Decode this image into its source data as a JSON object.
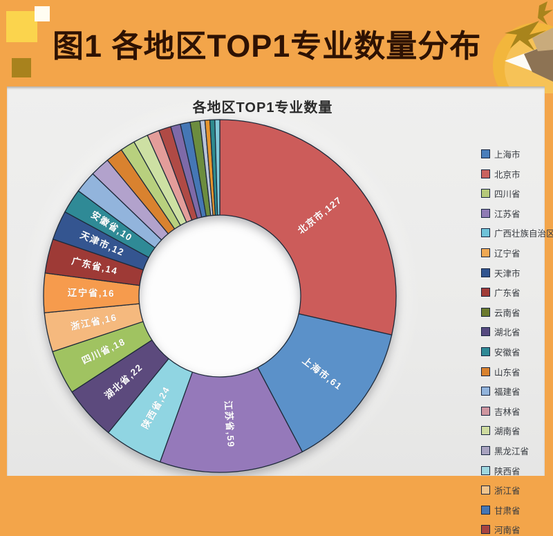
{
  "header": {
    "title": "图1 各地区TOP1专业数量分布"
  },
  "chart": {
    "title": "各地区TOP1专业数量"
  },
  "chart_data": {
    "type": "pie",
    "subtype": "donut",
    "title": "各地区TOP1专业数量",
    "start_angle_deg": 0,
    "direction": "clockwise",
    "legend_position": "right",
    "slices": [
      {
        "name": "北京市",
        "value": 127,
        "label": "北京市,127",
        "color": "#cc5c5a",
        "labeled": true
      },
      {
        "name": "上海市",
        "value": 61,
        "label": "上海市,61",
        "color": "#5b91c9",
        "labeled": true
      },
      {
        "name": "江苏省",
        "value": 59,
        "label": "江苏省,59",
        "color": "#9579ba",
        "labeled": true
      },
      {
        "name": "陕西省",
        "value": 24,
        "label": "陕西省,24",
        "color": "#90d5e2",
        "labeled": true
      },
      {
        "name": "湖北省",
        "value": 22,
        "label": "湖北省,22",
        "color": "#5c4a7d",
        "labeled": true
      },
      {
        "name": "四川省",
        "value": 18,
        "label": "四川省,18",
        "color": "#a0c361",
        "labeled": true
      },
      {
        "name": "浙江省",
        "value": 16,
        "label": "浙江省,16",
        "color": "#f5b97e",
        "labeled": true
      },
      {
        "name": "辽宁省",
        "value": 16,
        "label": "辽宁省,16",
        "color": "#f69b4d",
        "labeled": true
      },
      {
        "name": "广东省",
        "value": 14,
        "label": "广东省,14",
        "color": "#9e3a36",
        "labeled": true
      },
      {
        "name": "天津市",
        "value": 12,
        "label": "天津市,12",
        "color": "#345590",
        "labeled": true
      },
      {
        "name": "安徽省",
        "value": 10,
        "label": "安徽省,10",
        "color": "#2f8a96",
        "labeled": true
      },
      {
        "name": "福建省",
        "value": 9,
        "label": "",
        "color": "#92b4dc",
        "labeled": false,
        "estimated": true
      },
      {
        "name": "黑龙江省",
        "value": 8,
        "label": "",
        "color": "#b2a2cc",
        "labeled": false,
        "estimated": true
      },
      {
        "name": "山东省",
        "value": 7,
        "label": "",
        "color": "#d9822f",
        "labeled": false,
        "estimated": true
      },
      {
        "name": "湖南省",
        "value": 6,
        "label": "",
        "color": "#b8d07e",
        "labeled": false,
        "estimated": true
      },
      {
        "name": "",
        "value": 6,
        "label": "",
        "color": "#cde0a3",
        "labeled": false,
        "estimated": true
      },
      {
        "name": "吉林省",
        "value": 5,
        "label": "",
        "color": "#e39d9a",
        "labeled": false,
        "estimated": true
      },
      {
        "name": "河南省",
        "value": 5,
        "label": "",
        "color": "#b04a45",
        "labeled": false,
        "estimated": true
      },
      {
        "name": "",
        "value": 4,
        "label": "",
        "color": "#7e6aa8",
        "labeled": false,
        "estimated": true
      },
      {
        "name": "甘肃省",
        "value": 4,
        "label": "",
        "color": "#4577b5",
        "labeled": false,
        "estimated": true
      },
      {
        "name": "云南省",
        "value": 4,
        "label": "",
        "color": "#6c8d3f",
        "labeled": false,
        "estimated": true
      },
      {
        "name": "",
        "value": 2,
        "label": "",
        "color": "#b8c4d9",
        "labeled": false,
        "estimated": true
      },
      {
        "name": "",
        "value": 2,
        "label": "",
        "color": "#e6952e",
        "labeled": false,
        "estimated": true
      },
      {
        "name": "",
        "value": 2,
        "label": "",
        "color": "#2e8b8f",
        "labeled": false,
        "estimated": true
      },
      {
        "name": "广西壮族自治区",
        "value": 2,
        "label": "",
        "color": "#7fc9d8",
        "labeled": false,
        "estimated": true
      }
    ],
    "legend": [
      {
        "label": "上海市",
        "color": "#4a7ebb"
      },
      {
        "label": "北京市",
        "color": "#c9625e"
      },
      {
        "label": "四川省",
        "color": "#b5c97a"
      },
      {
        "label": "江苏省",
        "color": "#8f7bb5"
      },
      {
        "label": "广西壮族自治区",
        "color": "#6fc3d9"
      },
      {
        "label": "辽宁省",
        "color": "#f0a954"
      },
      {
        "label": "天津市",
        "color": "#31548f"
      },
      {
        "label": "广东省",
        "color": "#a03c38"
      },
      {
        "label": "云南省",
        "color": "#6b7a2e"
      },
      {
        "label": "湖北省",
        "color": "#564a80"
      },
      {
        "label": "安徽省",
        "color": "#2f8a96"
      },
      {
        "label": "山东省",
        "color": "#d9822f"
      },
      {
        "label": "福建省",
        "color": "#92b4dc"
      },
      {
        "label": "吉林省",
        "color": "#cf96a0"
      },
      {
        "label": "湖南省",
        "color": "#cfdca0"
      },
      {
        "label": "黑龙江省",
        "color": "#a9a3c0"
      },
      {
        "label": "陕西省",
        "color": "#9fd8e0"
      },
      {
        "label": "浙江省",
        "color": "#f0c48c"
      },
      {
        "label": "甘肃省",
        "color": "#4577b5"
      },
      {
        "label": "河南省",
        "color": "#a84440"
      }
    ]
  }
}
